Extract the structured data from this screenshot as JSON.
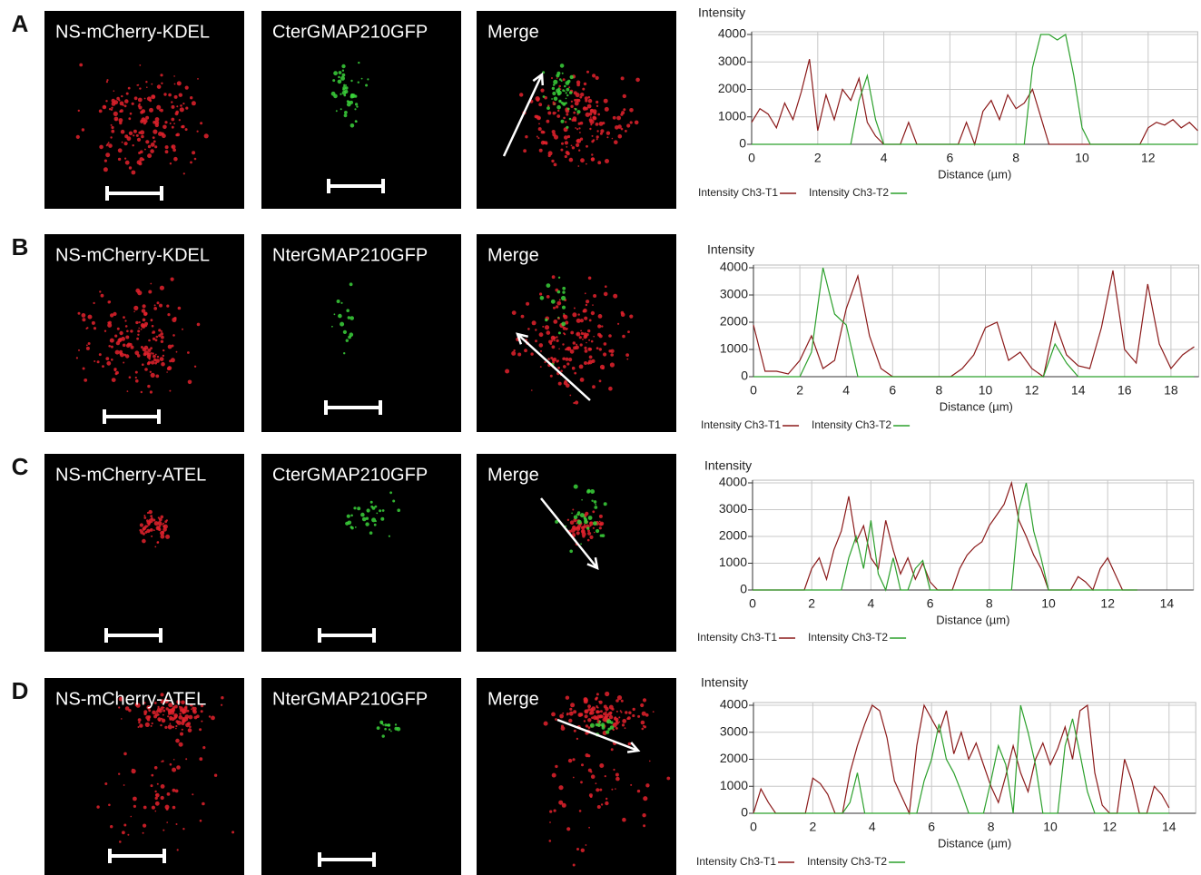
{
  "panels": [
    {
      "letter": "A",
      "images": [
        "NS-mCherry-KDEL",
        "CterGMAP210GFP",
        "Merge"
      ]
    },
    {
      "letter": "B",
      "images": [
        "NS-mCherry-KDEL",
        "NterGMAP210GFP",
        "Merge"
      ]
    },
    {
      "letter": "C",
      "images": [
        "NS-mCherry-ATEL",
        "CterGMAP210GFP",
        "Merge"
      ]
    },
    {
      "letter": "D",
      "images": [
        "NS-mCherry-ATEL",
        "NterGMAP210GFP",
        "Merge"
      ]
    }
  ],
  "chart_data": [
    {
      "type": "line",
      "y_label": "Intensity",
      "x_label": "Distance (µm)",
      "xlim": [
        0,
        13.5
      ],
      "xticks": [
        0,
        2,
        4,
        6,
        8,
        10,
        12
      ],
      "ylim": [
        0,
        4100
      ],
      "yticks": [
        0,
        1000,
        2000,
        3000,
        4000
      ],
      "grid": true,
      "x": [
        0,
        0.25,
        0.5,
        0.75,
        1,
        1.25,
        1.5,
        1.75,
        2,
        2.25,
        2.5,
        2.75,
        3,
        3.25,
        3.5,
        3.75,
        4,
        4.25,
        4.5,
        4.75,
        5,
        5.25,
        5.5,
        5.75,
        6,
        6.25,
        6.5,
        6.75,
        7,
        7.25,
        7.5,
        7.75,
        8,
        8.25,
        8.5,
        8.75,
        9,
        9.25,
        9.5,
        9.75,
        10,
        10.25,
        10.5,
        10.75,
        11,
        11.25,
        11.5,
        11.75,
        12,
        12.25,
        12.5,
        12.75,
        13,
        13.25,
        13.5
      ],
      "series": [
        {
          "name": "Intensity Ch3-T1",
          "color": "#8b1a1a",
          "values": [
            800,
            1300,
            1100,
            600,
            1500,
            900,
            1900,
            3100,
            500,
            1800,
            900,
            2000,
            1600,
            2400,
            800,
            300,
            0,
            0,
            0,
            800,
            0,
            0,
            0,
            0,
            0,
            0,
            800,
            0,
            1200,
            1600,
            900,
            1800,
            1300,
            1500,
            2000,
            1000,
            0,
            0,
            0,
            0,
            0,
            0,
            0,
            0,
            0,
            0,
            0,
            0,
            600,
            800,
            700,
            900,
            600,
            800,
            500
          ]
        },
        {
          "name": "Intensity Ch3-T2",
          "color": "#2ca02c",
          "values": [
            0,
            0,
            0,
            0,
            0,
            0,
            0,
            0,
            0,
            0,
            0,
            0,
            0,
            1600,
            2500,
            900,
            0,
            0,
            0,
            0,
            0,
            0,
            0,
            0,
            0,
            0,
            0,
            0,
            0,
            0,
            0,
            0,
            0,
            0,
            2800,
            4000,
            4000,
            3800,
            4000,
            2500,
            600,
            0,
            0,
            0,
            0,
            0,
            0,
            0,
            0,
            0,
            0,
            0,
            0,
            0,
            0
          ]
        }
      ]
    },
    {
      "type": "line",
      "y_label": "Intensity",
      "x_label": "Distance (µm)",
      "xlim": [
        0,
        19.2
      ],
      "xticks": [
        0,
        2,
        4,
        6,
        8,
        10,
        12,
        14,
        16,
        18
      ],
      "ylim": [
        0,
        4100
      ],
      "yticks": [
        0,
        1000,
        2000,
        3000,
        4000
      ],
      "grid": true,
      "x": [
        0,
        0.5,
        1,
        1.5,
        2,
        2.5,
        3,
        3.5,
        4,
        4.5,
        5,
        5.5,
        6,
        6.5,
        7,
        7.5,
        8,
        8.5,
        9,
        9.5,
        10,
        10.5,
        11,
        11.5,
        12,
        12.5,
        13,
        13.5,
        14,
        14.5,
        15,
        15.5,
        16,
        16.5,
        17,
        17.5,
        18,
        18.5,
        19
      ],
      "series": [
        {
          "name": "Intensity Ch3-T1",
          "color": "#8b1a1a",
          "values": [
            1900,
            200,
            200,
            100,
            600,
            1500,
            300,
            600,
            2500,
            3700,
            1500,
            300,
            0,
            0,
            0,
            0,
            0,
            0,
            300,
            800,
            1800,
            2000,
            600,
            900,
            300,
            0,
            2000,
            800,
            400,
            300,
            1800,
            3900,
            1000,
            500,
            3400,
            1200,
            300,
            800,
            1100
          ]
        },
        {
          "name": "Intensity Ch3-T2",
          "color": "#2ca02c",
          "values": [
            0,
            0,
            0,
            0,
            0,
            900,
            4000,
            2300,
            1900,
            0,
            0,
            0,
            0,
            0,
            0,
            0,
            0,
            0,
            0,
            0,
            0,
            0,
            0,
            0,
            0,
            0,
            1200,
            500,
            0,
            0,
            0,
            0,
            0,
            0,
            0,
            0,
            0,
            0,
            0
          ]
        }
      ]
    },
    {
      "type": "line",
      "y_label": "Intensity",
      "x_label": "Distance (µm)",
      "xlim": [
        0,
        14.9
      ],
      "xticks": [
        0,
        2,
        4,
        6,
        8,
        10,
        12,
        14
      ],
      "ylim": [
        0,
        4100
      ],
      "yticks": [
        0,
        1000,
        2000,
        3000,
        4000
      ],
      "grid": true,
      "x": [
        0,
        0.25,
        0.5,
        0.75,
        1,
        1.25,
        1.5,
        1.75,
        2,
        2.25,
        2.5,
        2.75,
        3,
        3.25,
        3.5,
        3.75,
        4,
        4.25,
        4.5,
        4.75,
        5,
        5.25,
        5.5,
        5.75,
        6,
        6.25,
        6.5,
        6.75,
        7,
        7.25,
        7.5,
        7.75,
        8,
        8.25,
        8.5,
        8.75,
        9,
        9.25,
        9.5,
        9.75,
        10,
        10.25,
        10.5,
        10.75,
        11,
        11.25,
        11.5,
        11.75,
        12,
        12.25,
        12.5,
        12.75,
        13
      ],
      "series": [
        {
          "name": "Intensity Ch3-T1",
          "color": "#8b1a1a",
          "values": [
            0,
            0,
            0,
            0,
            0,
            0,
            0,
            0,
            800,
            1200,
            400,
            1500,
            2200,
            3500,
            1800,
            2400,
            1200,
            800,
            2600,
            1500,
            600,
            1200,
            400,
            1000,
            300,
            0,
            0,
            0,
            800,
            1300,
            1600,
            1800,
            2400,
            2800,
            3200,
            4000,
            2600,
            2000,
            1300,
            800,
            0,
            0,
            0,
            0,
            500,
            300,
            0,
            800,
            1200,
            600,
            0,
            0,
            0
          ]
        },
        {
          "name": "Intensity Ch3-T2",
          "color": "#2ca02c",
          "values": [
            0,
            0,
            0,
            0,
            0,
            0,
            0,
            0,
            0,
            0,
            0,
            0,
            0,
            1200,
            2000,
            800,
            2600,
            600,
            0,
            1200,
            0,
            0,
            800,
            1100,
            0,
            0,
            0,
            0,
            0,
            0,
            0,
            0,
            0,
            0,
            0,
            0,
            3000,
            4000,
            2200,
            1200,
            0,
            0,
            0,
            0,
            0,
            0,
            0,
            0,
            0,
            0,
            0,
            0,
            0
          ]
        }
      ]
    },
    {
      "type": "line",
      "y_label": "Intensity",
      "x_label": "Distance (µm)",
      "xlim": [
        0,
        14.9
      ],
      "xticks": [
        0,
        2,
        4,
        6,
        8,
        10,
        12,
        14
      ],
      "ylim": [
        0,
        4100
      ],
      "yticks": [
        0,
        1000,
        2000,
        3000,
        4000
      ],
      "grid": true,
      "x": [
        0,
        0.25,
        0.5,
        0.75,
        1,
        1.25,
        1.5,
        1.75,
        2,
        2.25,
        2.5,
        2.75,
        3,
        3.25,
        3.5,
        3.75,
        4,
        4.25,
        4.5,
        4.75,
        5,
        5.25,
        5.5,
        5.75,
        6,
        6.25,
        6.5,
        6.75,
        7,
        7.25,
        7.5,
        7.75,
        8,
        8.25,
        8.5,
        8.75,
        9,
        9.25,
        9.5,
        9.75,
        10,
        10.25,
        10.5,
        10.75,
        11,
        11.25,
        11.5,
        11.75,
        12,
        12.25,
        12.5,
        12.75,
        13,
        13.25,
        13.5,
        13.75,
        14
      ],
      "series": [
        {
          "name": "Intensity Ch3-T1",
          "color": "#8b1a1a",
          "values": [
            0,
            900,
            400,
            0,
            0,
            0,
            0,
            0,
            1300,
            1100,
            700,
            0,
            0,
            1500,
            2500,
            3300,
            4000,
            3800,
            2800,
            1200,
            600,
            0,
            2500,
            4000,
            3500,
            3000,
            3800,
            2200,
            3000,
            2000,
            2600,
            1800,
            1000,
            400,
            1400,
            2500,
            1500,
            800,
            2000,
            2600,
            1800,
            2400,
            3200,
            2000,
            3800,
            4000,
            1500,
            300,
            0,
            0,
            2000,
            1200,
            0,
            0,
            1000,
            700,
            200
          ]
        },
        {
          "name": "Intensity Ch3-T2",
          "color": "#2ca02c",
          "values": [
            0,
            0,
            0,
            0,
            0,
            0,
            0,
            0,
            0,
            0,
            0,
            0,
            0,
            400,
            1500,
            0,
            0,
            0,
            0,
            0,
            0,
            0,
            0,
            1200,
            2000,
            3300,
            2000,
            1500,
            800,
            0,
            0,
            0,
            1200,
            2500,
            1800,
            0,
            4000,
            3000,
            1800,
            0,
            0,
            0,
            2500,
            3500,
            2200,
            800,
            0,
            0,
            0,
            0,
            0,
            0,
            0,
            0,
            0,
            0,
            0
          ]
        }
      ]
    }
  ]
}
